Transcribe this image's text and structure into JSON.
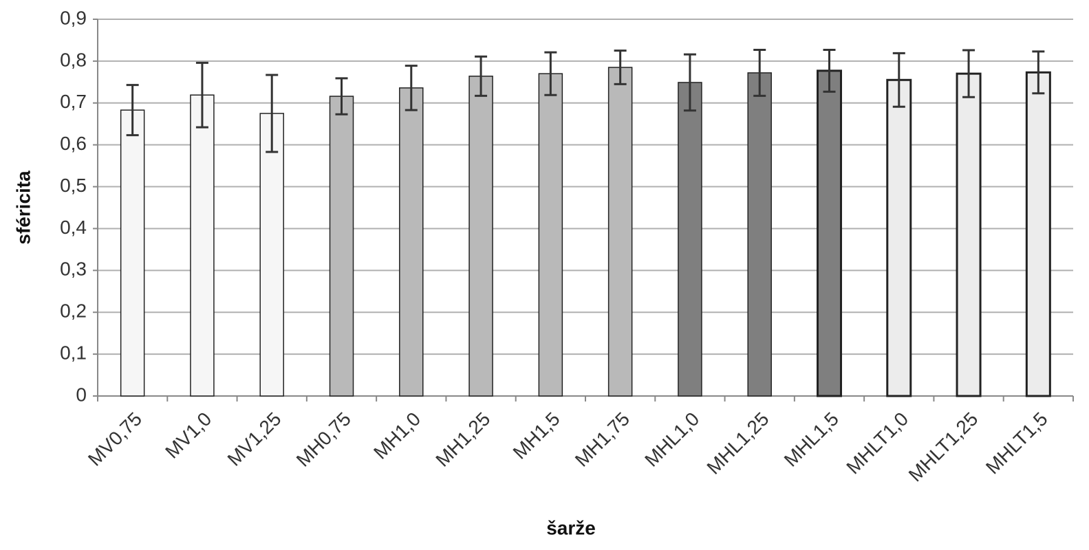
{
  "chart_data": {
    "type": "bar",
    "x_label": "šarže",
    "y_label": "sféricita",
    "categories": [
      "MV0,75",
      "MV1,0",
      "MV1,25",
      "MH0,75",
      "MH1,0",
      "MH1,25",
      "MH1,5",
      "MH1,75",
      "MHL1,0",
      "MHL1,25",
      "MHL1,5",
      "MHLT1,0",
      "MHLT1,25",
      "MHLT1,5"
    ],
    "values": [
      0.683,
      0.719,
      0.675,
      0.716,
      0.736,
      0.764,
      0.77,
      0.785,
      0.749,
      0.772,
      0.777,
      0.755,
      0.77,
      0.773
    ],
    "errors": [
      0.06,
      0.077,
      0.092,
      0.043,
      0.053,
      0.047,
      0.051,
      0.04,
      0.067,
      0.055,
      0.05,
      0.064,
      0.056,
      0.05
    ],
    "colors": [
      "#f6f6f6",
      "#f6f6f6",
      "#f6f6f6",
      "#b9b9b9",
      "#b9b9b9",
      "#b9b9b9",
      "#b9b9b9",
      "#b9b9b9",
      "#7f7f7f",
      "#7f7f7f",
      "#7f7f7f",
      "#ececec",
      "#ececec",
      "#ececec"
    ],
    "ylim": [
      0,
      0.9
    ],
    "yticks": [
      0,
      {
        "value": 0.1,
        "label": "0,1"
      },
      {
        "value": 0.2,
        "label": "0,2"
      },
      {
        "value": 0.3,
        "label": "0,3"
      },
      {
        "value": 0.4,
        "label": "0,4"
      },
      {
        "value": 0.5,
        "label": "0,5"
      },
      {
        "value": 0.6,
        "label": "0,6"
      },
      {
        "value": 0.7,
        "label": "0,7"
      },
      {
        "value": 0.8,
        "label": "0,8"
      },
      {
        "value": 0.9,
        "label": "0,9"
      }
    ],
    "grid": true
  }
}
